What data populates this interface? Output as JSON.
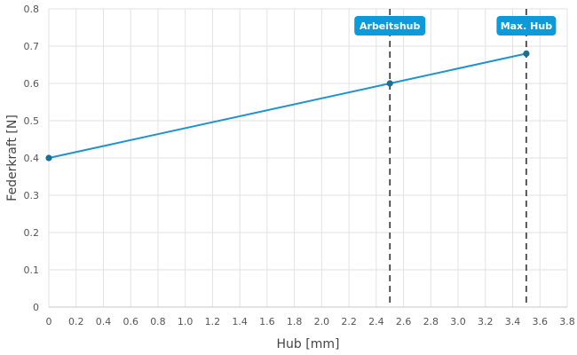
{
  "chart_data": {
    "type": "line",
    "xlabel": "Hub [mm]",
    "ylabel": "Federkraft [N]",
    "xlim": [
      0,
      3.8
    ],
    "ylim": [
      0,
      0.8
    ],
    "x_ticks": [
      0,
      0.2,
      0.4,
      0.6,
      0.8,
      1.0,
      1.2,
      1.4,
      1.6,
      1.8,
      2.0,
      2.2,
      2.4,
      2.6,
      2.8,
      3.0,
      3.2,
      3.4,
      3.6,
      3.8
    ],
    "x_tick_labels": [
      "0",
      "0.2",
      "0.4",
      "0.6",
      "0.8",
      "1.0",
      "1.2",
      "1.4",
      "1.6",
      "1.8",
      "2.0",
      "2.2",
      "2.4",
      "2.6",
      "2.8",
      "3.0",
      "3.2",
      "3.4",
      "3.6",
      "3.8"
    ],
    "y_ticks": [
      0,
      0.1,
      0.2,
      0.3,
      0.4,
      0.5,
      0.6,
      0.7,
      0.8
    ],
    "y_tick_labels": [
      "0",
      "0.1",
      "0.2",
      "0.3",
      "0.4",
      "0.5",
      "0.6",
      "0.7",
      "0.8"
    ],
    "grid": true,
    "series": [
      {
        "x": [
          0,
          2.5,
          3.5
        ],
        "y": [
          0.4,
          0.6,
          0.68
        ],
        "color": "#1f93cf",
        "marker_color": "#1a6f94"
      }
    ],
    "annotations": [
      {
        "label": "Arbeitshub",
        "x": 2.5,
        "style": "dashed-vertical",
        "badge_color": "#0d9ad9"
      },
      {
        "label": "Max. Hub",
        "x": 3.5,
        "style": "dashed-vertical",
        "badge_color": "#0d9ad9"
      }
    ]
  }
}
